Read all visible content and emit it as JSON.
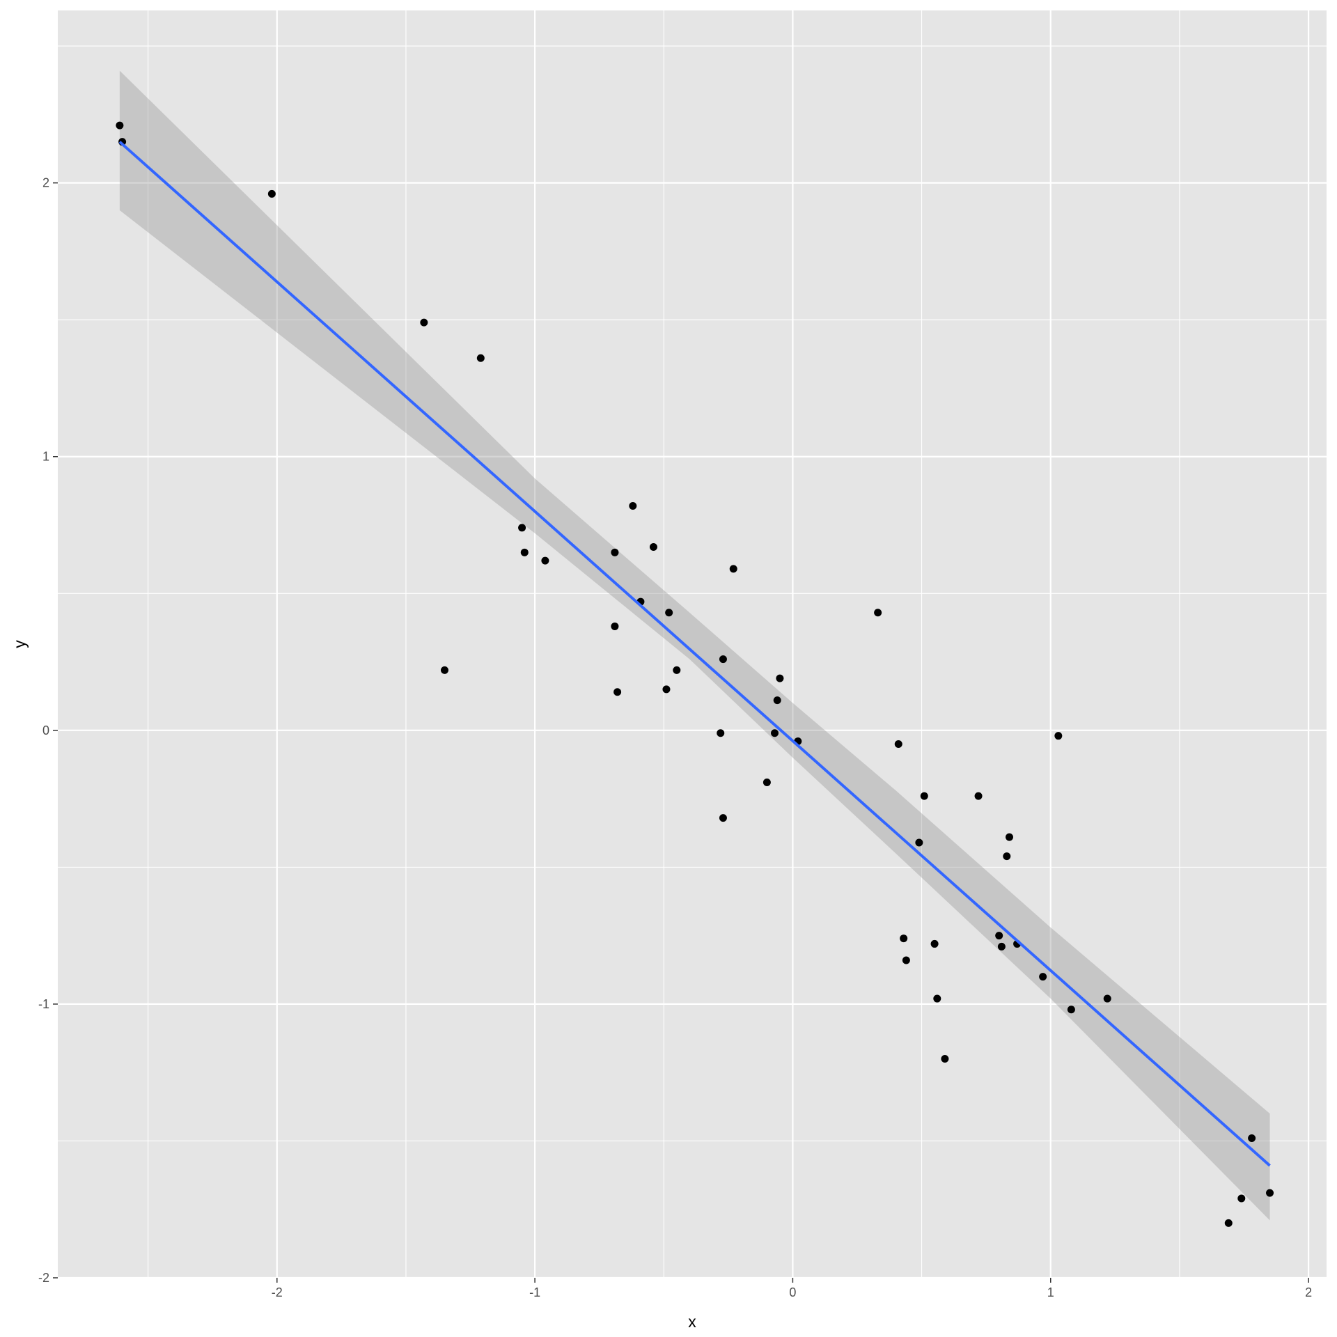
{
  "chart_data": {
    "type": "scatter",
    "xlabel": "x",
    "ylabel": "y",
    "xlim": [
      -2.85,
      2.07
    ],
    "ylim": [
      -2.0,
      2.63
    ],
    "x_ticks": [
      -2,
      -1,
      0,
      1,
      2
    ],
    "x_tick_labels": [
      "-2",
      "-1",
      "0",
      "1",
      "2"
    ],
    "y_ticks": [
      -2,
      -1,
      0,
      1,
      2
    ],
    "y_tick_labels": [
      "-2",
      "-1",
      "0",
      "1",
      "2"
    ],
    "x_minor": [
      -2.5,
      -1.5,
      -0.5,
      0.5,
      1.5
    ],
    "y_minor": [
      -1.5,
      -0.5,
      0.5,
      1.5,
      2.5
    ],
    "grid": true,
    "legend": "none",
    "colors": {
      "panel": "#e5e5e5",
      "grid": "#ffffff",
      "points": "#000000",
      "line": "#3366ff",
      "ribbon": "#999999"
    },
    "points": [
      {
        "x": -2.61,
        "y": 2.21
      },
      {
        "x": -2.6,
        "y": 2.15
      },
      {
        "x": -2.02,
        "y": 1.96
      },
      {
        "x": -1.43,
        "y": 1.49
      },
      {
        "x": -1.21,
        "y": 1.36
      },
      {
        "x": -1.35,
        "y": 0.22
      },
      {
        "x": -1.05,
        "y": 0.74
      },
      {
        "x": -1.04,
        "y": 0.65
      },
      {
        "x": -0.96,
        "y": 0.62
      },
      {
        "x": -0.62,
        "y": 0.82
      },
      {
        "x": -0.69,
        "y": 0.65
      },
      {
        "x": -0.54,
        "y": 0.67
      },
      {
        "x": -0.59,
        "y": 0.47
      },
      {
        "x": -0.48,
        "y": 0.43
      },
      {
        "x": -0.69,
        "y": 0.38
      },
      {
        "x": -0.68,
        "y": 0.14
      },
      {
        "x": -0.49,
        "y": 0.15
      },
      {
        "x": -0.45,
        "y": 0.22
      },
      {
        "x": -0.27,
        "y": 0.26
      },
      {
        "x": -0.23,
        "y": 0.59
      },
      {
        "x": -0.05,
        "y": 0.19
      },
      {
        "x": -0.06,
        "y": 0.11
      },
      {
        "x": -0.28,
        "y": -0.01
      },
      {
        "x": -0.07,
        "y": -0.01
      },
      {
        "x": 0.02,
        "y": -0.04
      },
      {
        "x": -0.1,
        "y": -0.19
      },
      {
        "x": -0.27,
        "y": -0.32
      },
      {
        "x": 0.33,
        "y": 0.43
      },
      {
        "x": 0.41,
        "y": -0.05
      },
      {
        "x": 0.51,
        "y": -0.24
      },
      {
        "x": 0.49,
        "y": -0.41
      },
      {
        "x": 0.72,
        "y": -0.24
      },
      {
        "x": 0.84,
        "y": -0.39
      },
      {
        "x": 0.83,
        "y": -0.46
      },
      {
        "x": 1.03,
        "y": -0.02
      },
      {
        "x": 0.43,
        "y": -0.76
      },
      {
        "x": 0.44,
        "y": -0.84
      },
      {
        "x": 0.55,
        "y": -0.78
      },
      {
        "x": 0.56,
        "y": -0.98
      },
      {
        "x": 0.59,
        "y": -1.2
      },
      {
        "x": 0.8,
        "y": -0.75
      },
      {
        "x": 0.81,
        "y": -0.79
      },
      {
        "x": 0.87,
        "y": -0.78
      },
      {
        "x": 0.97,
        "y": -0.9
      },
      {
        "x": 1.08,
        "y": -1.02
      },
      {
        "x": 1.22,
        "y": -0.98
      },
      {
        "x": 1.78,
        "y": -1.49
      },
      {
        "x": 1.74,
        "y": -1.71
      },
      {
        "x": 1.69,
        "y": -1.8
      },
      {
        "x": 1.85,
        "y": -1.69
      }
    ],
    "fit_line": {
      "x": [
        -2.61,
        1.85
      ],
      "y": [
        2.15,
        -1.59
      ]
    },
    "ribbon": {
      "upper": [
        [
          -2.61,
          2.41
        ],
        [
          -1.0,
          0.92
        ],
        [
          -0.4,
          0.43
        ],
        [
          0.0,
          0.1
        ],
        [
          0.4,
          -0.22
        ],
        [
          1.0,
          -0.72
        ],
        [
          1.85,
          -1.4
        ]
      ],
      "lower": [
        [
          -2.61,
          1.9
        ],
        [
          -1.0,
          0.72
        ],
        [
          -0.4,
          0.26
        ],
        [
          0.0,
          -0.1
        ],
        [
          0.4,
          -0.45
        ],
        [
          1.0,
          -0.98
        ],
        [
          1.85,
          -1.79
        ]
      ]
    }
  }
}
